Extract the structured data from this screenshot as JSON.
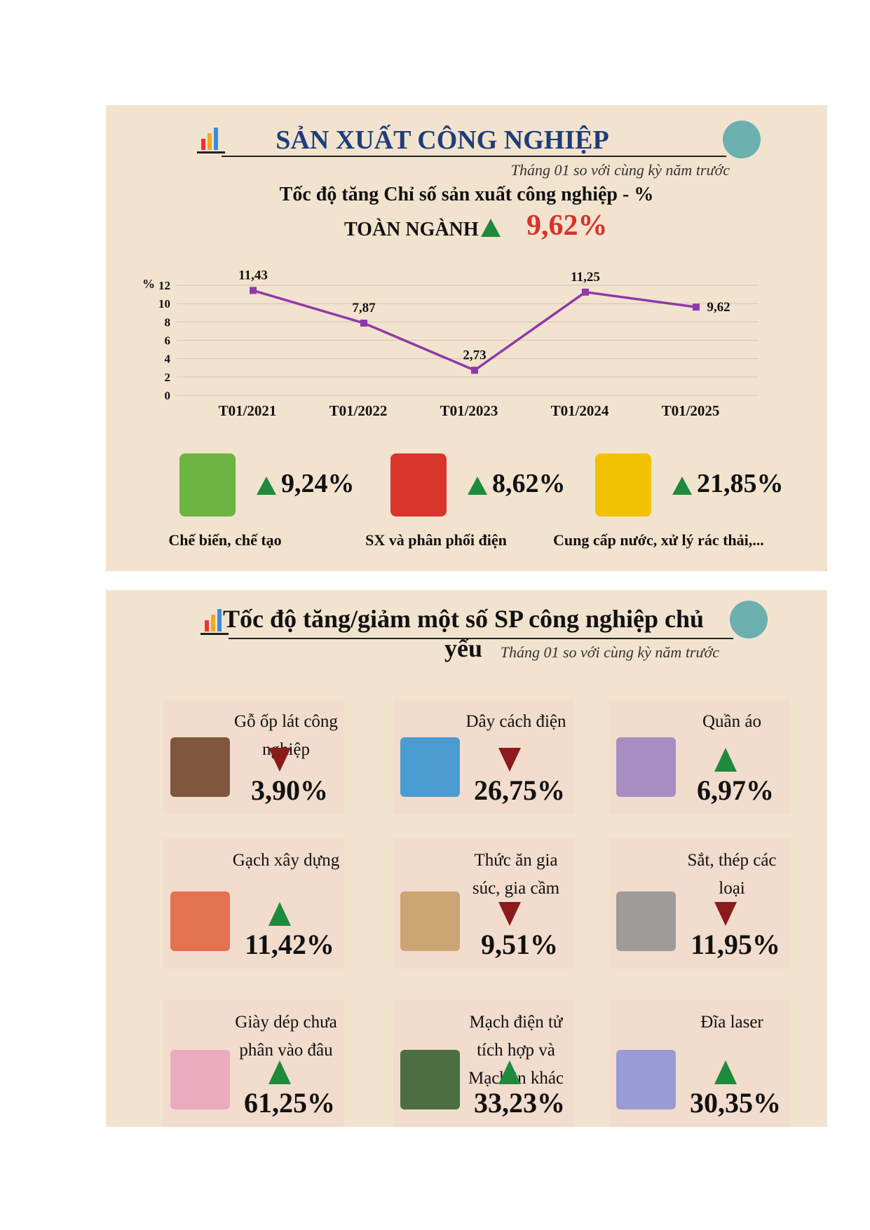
{
  "header": {
    "title": "SẢN XUẤT CÔNG NGHIỆP",
    "subtitle": "Tháng 01 so với cùng kỳ năm trước",
    "chart_title": "Tốc độ tăng Chỉ số sản xuất công nghiệp - %",
    "overall_label": "TOÀN NGÀNH",
    "overall_value": "9,62%",
    "overall_trend": "up"
  },
  "chart_data": {
    "type": "line",
    "y_label": "%",
    "categories": [
      "T01/2021",
      "T01/2022",
      "T01/2023",
      "T01/2024",
      "T01/2025"
    ],
    "values": [
      11.43,
      7.87,
      2.73,
      11.25,
      9.62
    ],
    "value_labels": [
      "11,43",
      "7,87",
      "2,73",
      "11,25",
      "9,62"
    ],
    "color": "#8e3aa8",
    "ylim": [
      0,
      12
    ],
    "yticks": [
      0,
      2,
      4,
      6,
      8,
      10,
      12
    ],
    "grid": true
  },
  "sectors": [
    {
      "label": "Chế biến, chế tạo",
      "value": "9,24%",
      "trend": "up",
      "color": "#6db33f"
    },
    {
      "label": "SX và phân phối điện",
      "value": "8,62%",
      "trend": "up",
      "color": "#d9342b"
    },
    {
      "label": "Cung cấp nước, xử lý rác thải,...",
      "value": "21,85%",
      "trend": "up",
      "color": "#f2c200"
    }
  ],
  "products": {
    "title": "Tốc độ tăng/giảm một số SP công nghiệp chủ yếu",
    "subtitle": "Tháng 01 so với cùng kỳ năm trước",
    "items": [
      {
        "label": "Gỗ ốp lát công nghiệp",
        "value": "3,90%",
        "trend": "down",
        "color": "#6b3f24"
      },
      {
        "label": "Dây cách điện",
        "value": "26,75%",
        "trend": "down",
        "color": "#2f8fd0"
      },
      {
        "label": "Quần áo",
        "value": "6,97%",
        "trend": "up",
        "color": "#9a7fc0"
      },
      {
        "label": "Gạch xây dựng",
        "value": "11,42%",
        "trend": "up",
        "color": "#e0603a"
      },
      {
        "label": "Thức ăn gia súc, gia cầm",
        "value": "9,51%",
        "trend": "down",
        "color": "#c79a63"
      },
      {
        "label": "Sắt, thép các loại",
        "value": "11,95%",
        "trend": "down",
        "color": "#8f8f8f"
      },
      {
        "label": "Giày dép chưa phân vào đâu",
        "value": "61,25%",
        "trend": "up",
        "color": "#e9a3b8"
      },
      {
        "label": "Mạch điện tử tích hợp và Mạch in khác",
        "value": "33,23%",
        "trend": "up",
        "color": "#2e5a2a"
      },
      {
        "label": "Đĩa laser",
        "value": "30,35%",
        "trend": "up",
        "color": "#8a8fd8"
      }
    ]
  }
}
